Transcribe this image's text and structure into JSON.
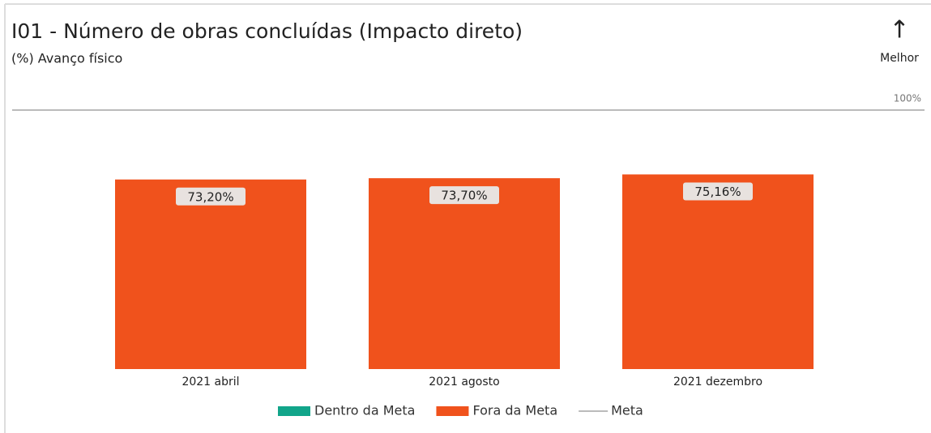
{
  "chart_data": {
    "type": "bar",
    "title": "I01 - Número de obras concluídas (Impacto direto)",
    "subtitle": "(%) Avanço físico",
    "direction": "↑",
    "direction_label": "Melhor",
    "categories": [
      "2021 abril",
      "2021 agosto",
      "2021 dezembro"
    ],
    "series": [
      {
        "name": "Dentro da Meta",
        "color": "#12a58a",
        "values": [
          null,
          null,
          null
        ]
      },
      {
        "name": "Fora da Meta",
        "color": "#f0521c",
        "values": [
          73.2,
          73.7,
          75.16
        ],
        "value_labels": [
          "73,20%",
          "73,70%",
          "75,16%"
        ]
      },
      {
        "name": "Meta",
        "color": "#bbbbbb",
        "type": "line",
        "values": [
          100,
          100,
          100
        ]
      }
    ],
    "meta_label": {
      "value": 100,
      "label": "100%"
    },
    "ylim": [
      0,
      100
    ]
  }
}
